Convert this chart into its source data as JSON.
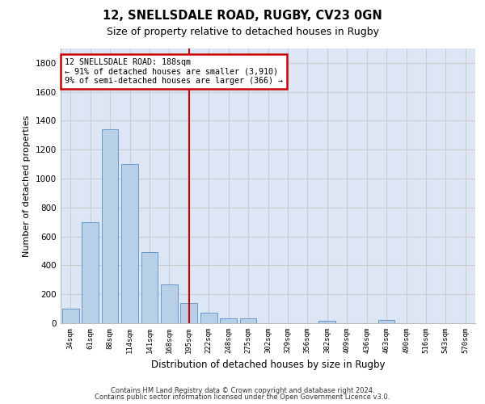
{
  "title1": "12, SNELLSDALE ROAD, RUGBY, CV23 0GN",
  "title2": "Size of property relative to detached houses in Rugby",
  "xlabel": "Distribution of detached houses by size in Rugby",
  "ylabel": "Number of detached properties",
  "categories": [
    "34sqm",
    "61sqm",
    "88sqm",
    "114sqm",
    "141sqm",
    "168sqm",
    "195sqm",
    "222sqm",
    "248sqm",
    "275sqm",
    "302sqm",
    "329sqm",
    "356sqm",
    "382sqm",
    "409sqm",
    "436sqm",
    "463sqm",
    "490sqm",
    "516sqm",
    "543sqm",
    "570sqm"
  ],
  "values": [
    100,
    700,
    1340,
    1100,
    490,
    270,
    140,
    70,
    35,
    35,
    0,
    0,
    0,
    15,
    0,
    0,
    20,
    0,
    0,
    0,
    0
  ],
  "bar_color": "#b8cfe8",
  "bar_edge_color": "#6699cc",
  "vline_x": 6.0,
  "vline_color": "#cc0000",
  "annotation_line1": "12 SNELLSDALE ROAD: 188sqm",
  "annotation_line2": "← 91% of detached houses are smaller (3,910)",
  "annotation_line3": "9% of semi-detached houses are larger (366) →",
  "annotation_box_color": "#cc0000",
  "annotation_box_facecolor": "white",
  "ylim": [
    0,
    1900
  ],
  "yticks": [
    0,
    200,
    400,
    600,
    800,
    1000,
    1200,
    1400,
    1600,
    1800
  ],
  "grid_color": "#cccccc",
  "bg_color": "#dce6f5",
  "footer1": "Contains HM Land Registry data © Crown copyright and database right 2024.",
  "footer2": "Contains public sector information licensed under the Open Government Licence v3.0."
}
